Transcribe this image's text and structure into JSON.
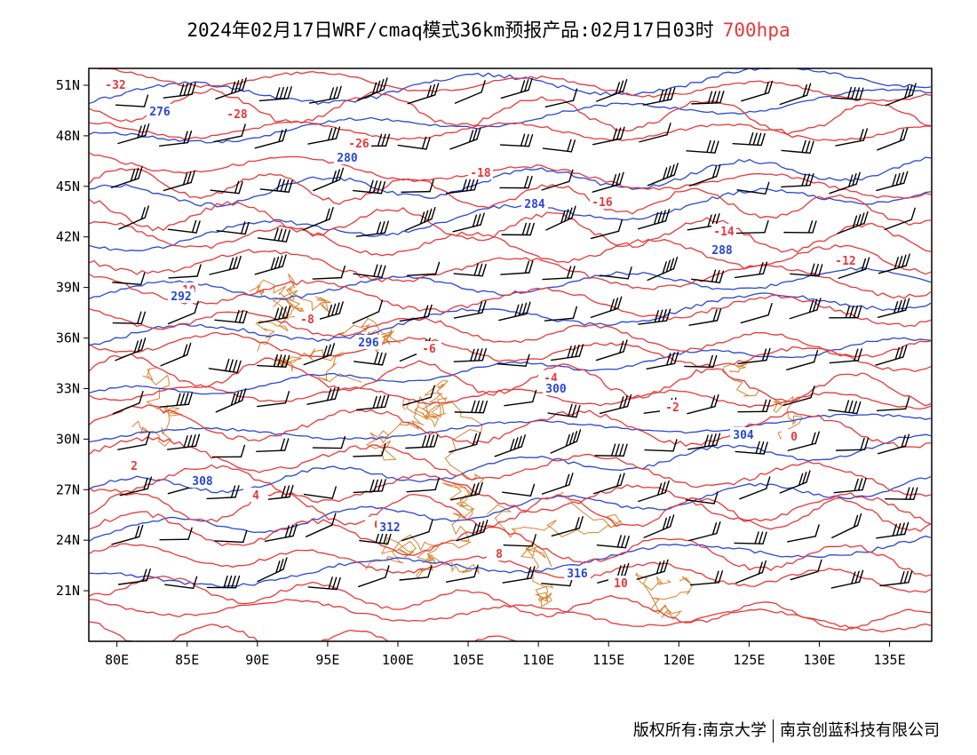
{
  "title": {
    "text": "2024年02月17日WRF/cmaq模式36km预报产品:02月17日03时",
    "level": "700hpa"
  },
  "colors": {
    "temperature": "#e8383a",
    "geopotential": "#2a46d8",
    "border": "#d9852f",
    "wind": "#000000"
  },
  "map": {
    "lon_range": [
      78,
      138
    ],
    "lat_range": [
      18,
      52
    ],
    "lon_ticks": [
      "80E",
      "85E",
      "90E",
      "95E",
      "100E",
      "105E",
      "110E",
      "115E",
      "120E",
      "125E",
      "130E",
      "135E"
    ],
    "lat_ticks": [
      "51N",
      "48N",
      "45N",
      "42N",
      "39N",
      "36N",
      "33N",
      "30N",
      "27N",
      "24N",
      "21N"
    ],
    "temperature_labels": [
      "-32",
      "-28",
      "-26",
      "-18",
      "-16",
      "-14",
      "-12",
      "-10",
      "-8",
      "-6",
      "-4",
      "-2",
      "0",
      "2",
      "4",
      "6",
      "8",
      "10"
    ],
    "geopotential_labels": [
      "276",
      "280",
      "284",
      "288",
      "292",
      "296",
      "300",
      "304",
      "308",
      "312",
      "316"
    ]
  },
  "footer": {
    "left": "版权所有:南京大学",
    "right": "南京创蓝科技有限公司"
  }
}
